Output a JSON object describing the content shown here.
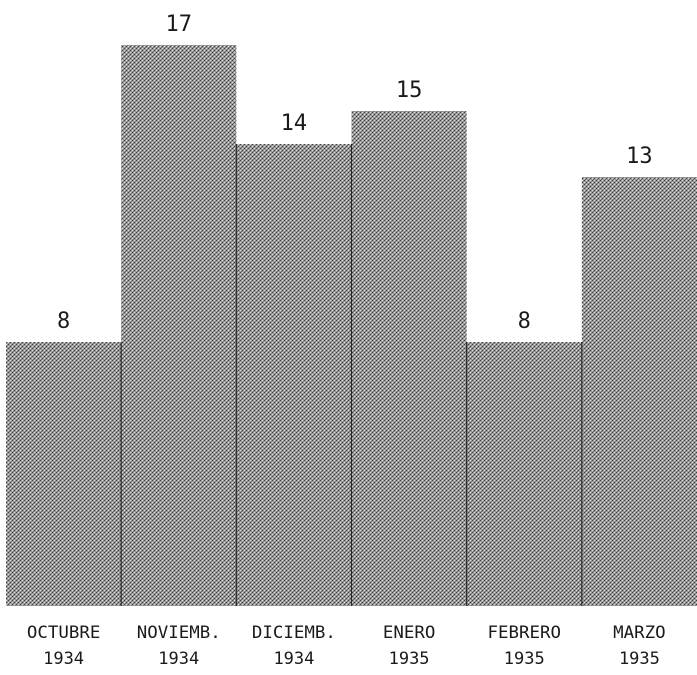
{
  "chart_data": {
    "type": "bar",
    "title": "",
    "xlabel": "",
    "ylabel": "",
    "categories": [
      {
        "month": "OCTUBRE",
        "year": "1934"
      },
      {
        "month": "NOVIEMB.",
        "year": "1934"
      },
      {
        "month": "DICIEMB.",
        "year": "1934"
      },
      {
        "month": "ENERO",
        "year": "1935"
      },
      {
        "month": "FEBRERO",
        "year": "1935"
      },
      {
        "month": "MARZO",
        "year": "1935"
      }
    ],
    "values": [
      8,
      17,
      14,
      15,
      8,
      13
    ],
    "value_labels": [
      "8",
      "17",
      "14",
      "15",
      "8",
      "13"
    ],
    "bar_fill": "dotted gray halftone",
    "colors": {
      "bar_base": "#9a9a9a",
      "bar_dot_dark": "#3a3a3a",
      "bar_dot_light": "#d8d8d8",
      "separator": "#2a2a2a",
      "text": "#1a1a1a"
    },
    "grid": false,
    "legend": "none"
  }
}
